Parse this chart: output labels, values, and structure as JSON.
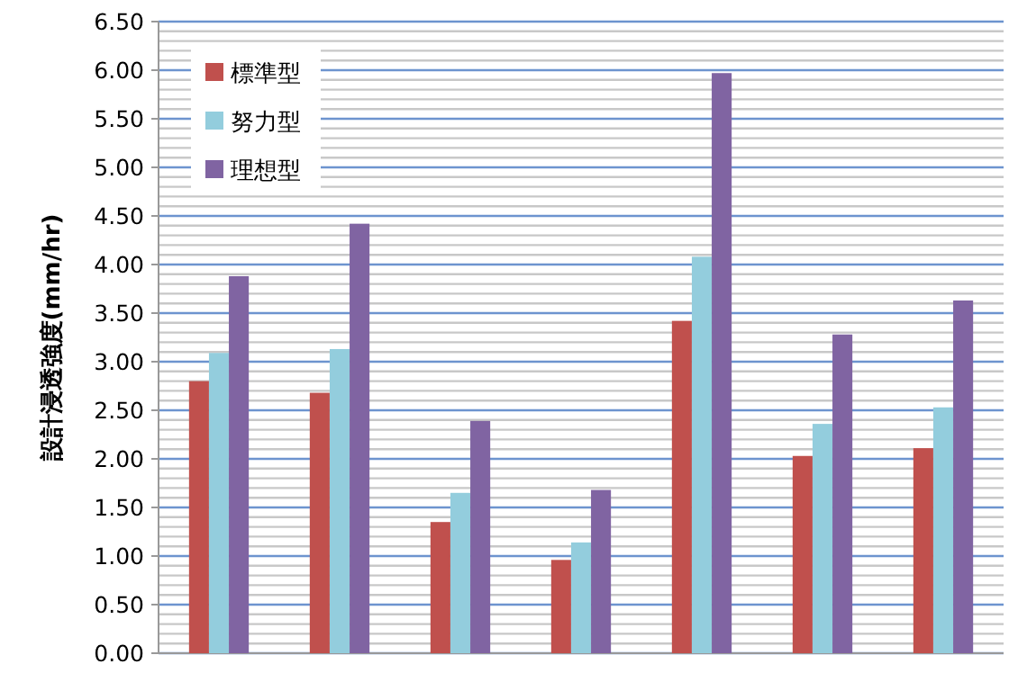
{
  "chart_data": {
    "type": "bar",
    "ylabel": "設計浸透強度(mm/hr)",
    "categories": [
      null,
      null,
      null,
      null,
      null,
      null,
      null
    ],
    "series": [
      {
        "name": "標準型",
        "color": "#c0504d",
        "values": [
          2.8,
          2.68,
          1.35,
          0.96,
          3.42,
          2.03,
          2.11
        ]
      },
      {
        "name": "努力型",
        "color": "#93cddd",
        "values": [
          3.09,
          3.13,
          1.65,
          1.14,
          4.08,
          2.36,
          2.53
        ]
      },
      {
        "name": "理想型",
        "color": "#8064a2",
        "values": [
          3.88,
          4.42,
          2.39,
          1.68,
          5.97,
          3.28,
          3.63
        ]
      }
    ],
    "ylim": [
      0,
      6.5
    ],
    "yticks": [
      {
        "value": 0,
        "label": "0.00"
      },
      {
        "value": 0.5,
        "label": "0.50"
      },
      {
        "value": 1,
        "label": "1.00"
      },
      {
        "value": 1.5,
        "label": "1.50"
      },
      {
        "value": 2,
        "label": "2.00"
      },
      {
        "value": 2.5,
        "label": "2.50"
      },
      {
        "value": 3,
        "label": "3.00"
      },
      {
        "value": 3.5,
        "label": "3.50"
      },
      {
        "value": 4,
        "label": "4.00"
      },
      {
        "value": 4.5,
        "label": "4.50"
      },
      {
        "value": 5,
        "label": "5.00"
      },
      {
        "value": 5.5,
        "label": "5.50"
      },
      {
        "value": 6,
        "label": "6.00"
      },
      {
        "value": 6.5,
        "label": "6.50"
      }
    ],
    "grid": "y",
    "legend": "top left"
  }
}
